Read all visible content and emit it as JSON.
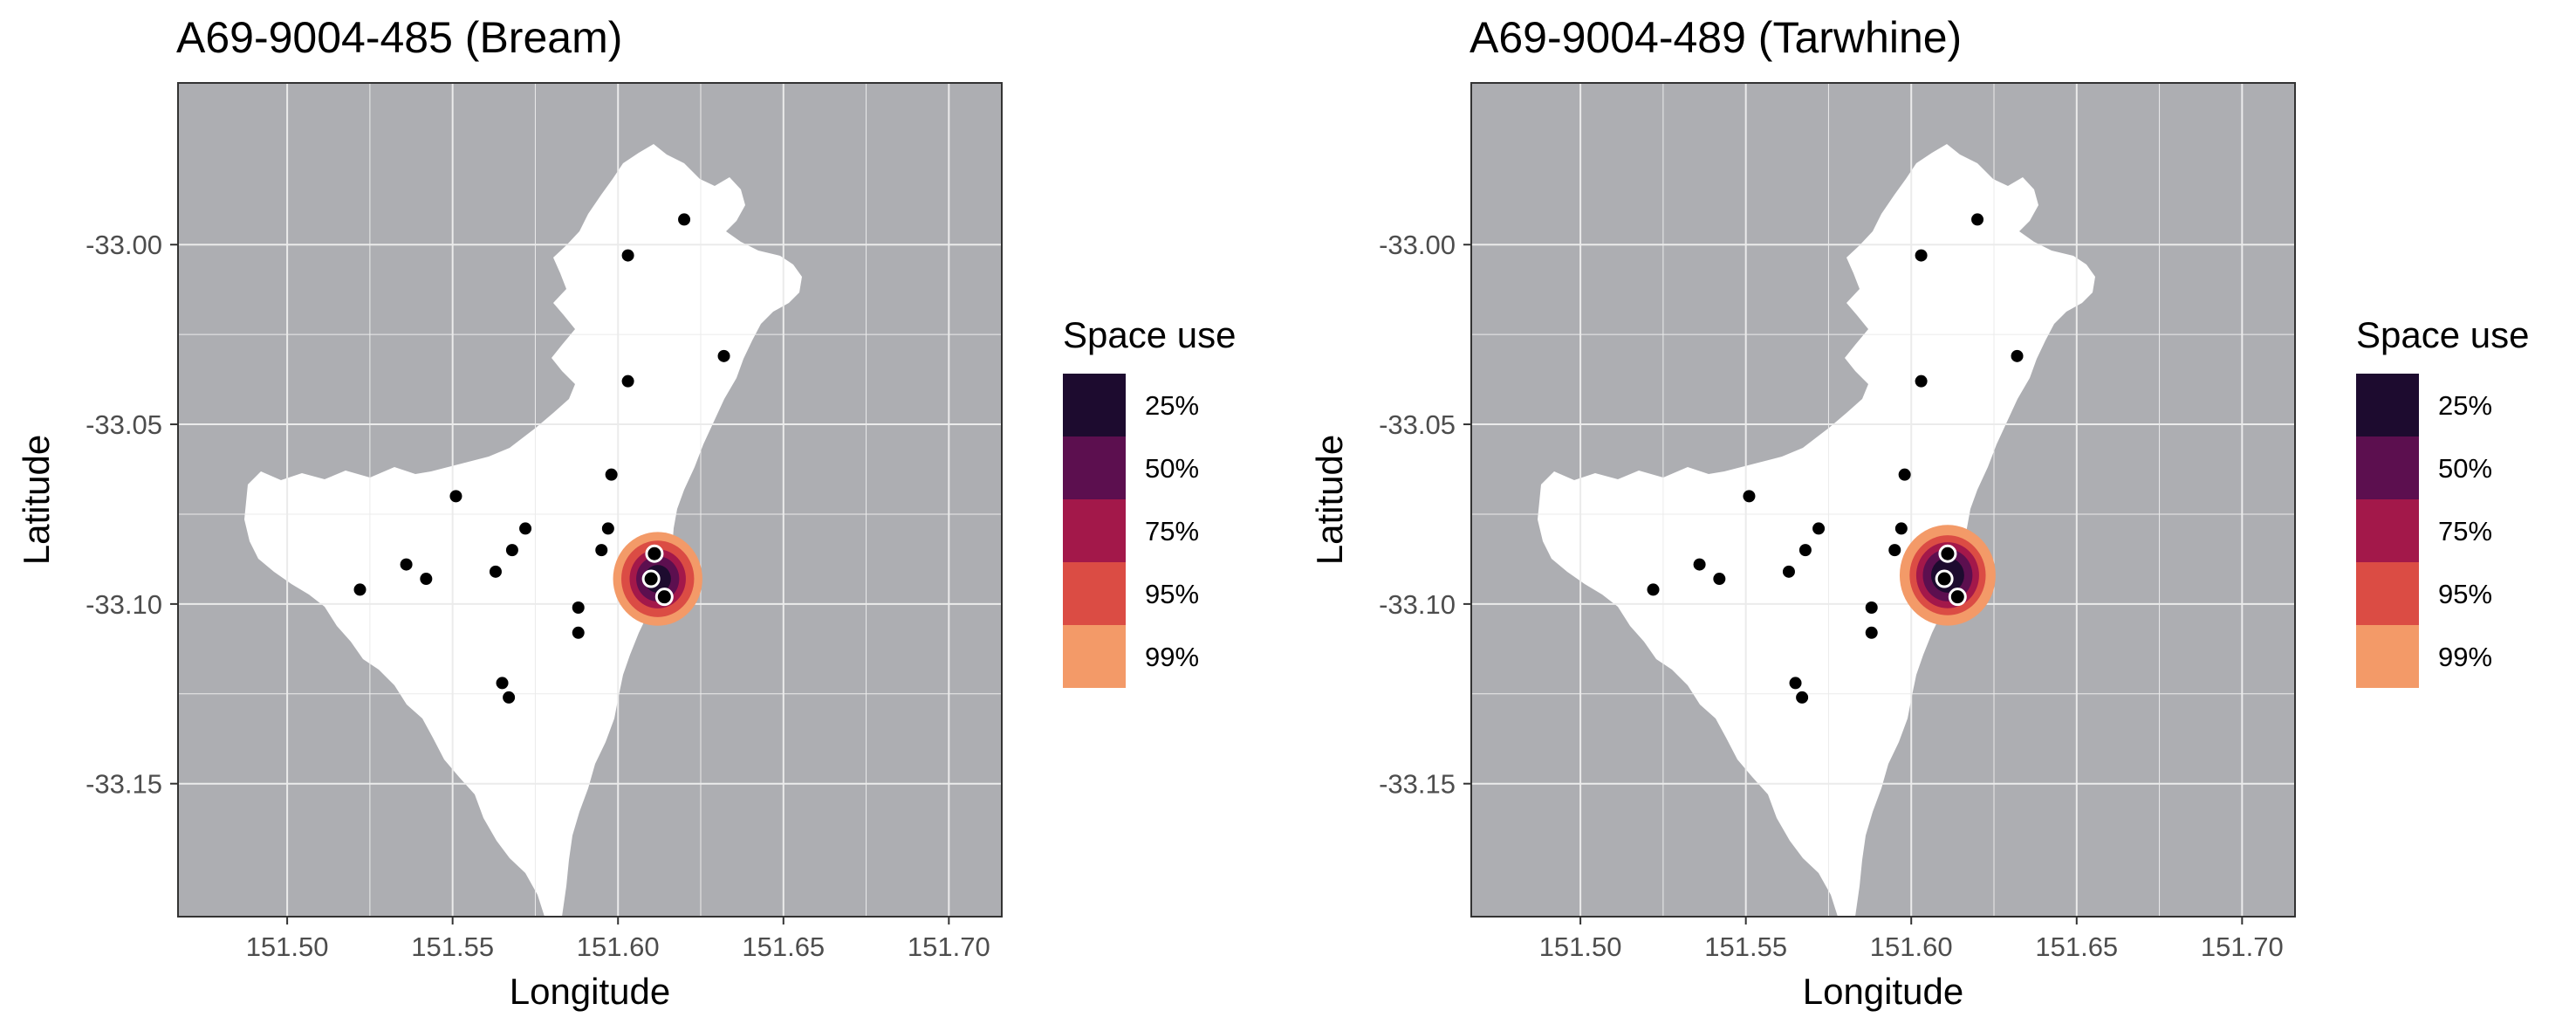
{
  "colors": {
    "land": "#adaeb2",
    "water": "#ffffff",
    "grid": "#ebebeb",
    "frame": "#333333",
    "receiver": "#000000",
    "detection_stroke": "#ffffff"
  },
  "legend": {
    "title": "Space use",
    "levels": [
      {
        "label": "25%",
        "color": "#1d0b2f"
      },
      {
        "label": "50%",
        "color": "#5c0f4f"
      },
      {
        "label": "75%",
        "color": "#a3184a"
      },
      {
        "label": "95%",
        "color": "#db4c44"
      },
      {
        "label": "99%",
        "color": "#f39a68"
      }
    ]
  },
  "chart_data": [
    {
      "type": "map",
      "title": "A69-9004-485 (Bream)",
      "xlabel": "Longitude",
      "ylabel": "Latitude",
      "xlim": [
        151.467,
        151.716
      ],
      "ylim": [
        -33.187,
        -32.955
      ],
      "x_ticks": [
        "151.50",
        "151.55",
        "151.60",
        "151.65",
        "151.70"
      ],
      "y_ticks": [
        "-33.00",
        "-33.05",
        "-33.10",
        "-33.15"
      ],
      "grid": true,
      "legend_position": "right",
      "receivers": [
        {
          "lon": 151.62,
          "lat": -32.993
        },
        {
          "lon": 151.603,
          "lat": -33.003
        },
        {
          "lon": 151.632,
          "lat": -33.031
        },
        {
          "lon": 151.603,
          "lat": -33.038
        },
        {
          "lon": 151.598,
          "lat": -33.064
        },
        {
          "lon": 151.551,
          "lat": -33.07
        },
        {
          "lon": 151.572,
          "lat": -33.079
        },
        {
          "lon": 151.597,
          "lat": -33.079
        },
        {
          "lon": 151.568,
          "lat": -33.085
        },
        {
          "lon": 151.595,
          "lat": -33.085
        },
        {
          "lon": 151.563,
          "lat": -33.091
        },
        {
          "lon": 151.536,
          "lat": -33.089
        },
        {
          "lon": 151.542,
          "lat": -33.093
        },
        {
          "lon": 151.522,
          "lat": -33.096
        },
        {
          "lon": 151.588,
          "lat": -33.101
        },
        {
          "lon": 151.588,
          "lat": -33.108
        },
        {
          "lon": 151.565,
          "lat": -33.122
        },
        {
          "lon": 151.567,
          "lat": -33.126
        }
      ],
      "detections": [
        {
          "lon": 151.611,
          "lat": -33.086
        },
        {
          "lon": 151.61,
          "lat": -33.093
        },
        {
          "lon": 151.614,
          "lat": -33.098
        }
      ],
      "space_use": {
        "center": {
          "lon": 151.612,
          "lat": -33.093
        },
        "radii_deg": {
          "25%": 0.004,
          "50%": 0.0065,
          "75%": 0.0085,
          "95%": 0.011,
          "99%": 0.0135
        }
      }
    },
    {
      "type": "map",
      "title": "A69-9004-489 (Tarwhine)",
      "xlabel": "Longitude",
      "ylabel": "Latitude",
      "xlim": [
        151.467,
        151.716
      ],
      "ylim": [
        -33.187,
        -32.955
      ],
      "x_ticks": [
        "151.50",
        "151.55",
        "151.60",
        "151.65",
        "151.70"
      ],
      "y_ticks": [
        "-33.00",
        "-33.05",
        "-33.10",
        "-33.15"
      ],
      "grid": true,
      "legend_position": "right",
      "receivers": [
        {
          "lon": 151.62,
          "lat": -32.993
        },
        {
          "lon": 151.603,
          "lat": -33.003
        },
        {
          "lon": 151.632,
          "lat": -33.031
        },
        {
          "lon": 151.603,
          "lat": -33.038
        },
        {
          "lon": 151.598,
          "lat": -33.064
        },
        {
          "lon": 151.551,
          "lat": -33.07
        },
        {
          "lon": 151.572,
          "lat": -33.079
        },
        {
          "lon": 151.597,
          "lat": -33.079
        },
        {
          "lon": 151.568,
          "lat": -33.085
        },
        {
          "lon": 151.595,
          "lat": -33.085
        },
        {
          "lon": 151.563,
          "lat": -33.091
        },
        {
          "lon": 151.536,
          "lat": -33.089
        },
        {
          "lon": 151.542,
          "lat": -33.093
        },
        {
          "lon": 151.522,
          "lat": -33.096
        },
        {
          "lon": 151.588,
          "lat": -33.101
        },
        {
          "lon": 151.588,
          "lat": -33.108
        },
        {
          "lon": 151.565,
          "lat": -33.122
        },
        {
          "lon": 151.567,
          "lat": -33.126
        }
      ],
      "detections": [
        {
          "lon": 151.611,
          "lat": -33.086
        },
        {
          "lon": 151.61,
          "lat": -33.093
        },
        {
          "lon": 151.614,
          "lat": -33.098
        }
      ],
      "space_use": {
        "center": {
          "lon": 151.611,
          "lat": -33.092
        },
        "radii_deg": {
          "25%": 0.005,
          "50%": 0.0075,
          "75%": 0.0095,
          "95%": 0.0115,
          "99%": 0.0145
        }
      }
    }
  ]
}
